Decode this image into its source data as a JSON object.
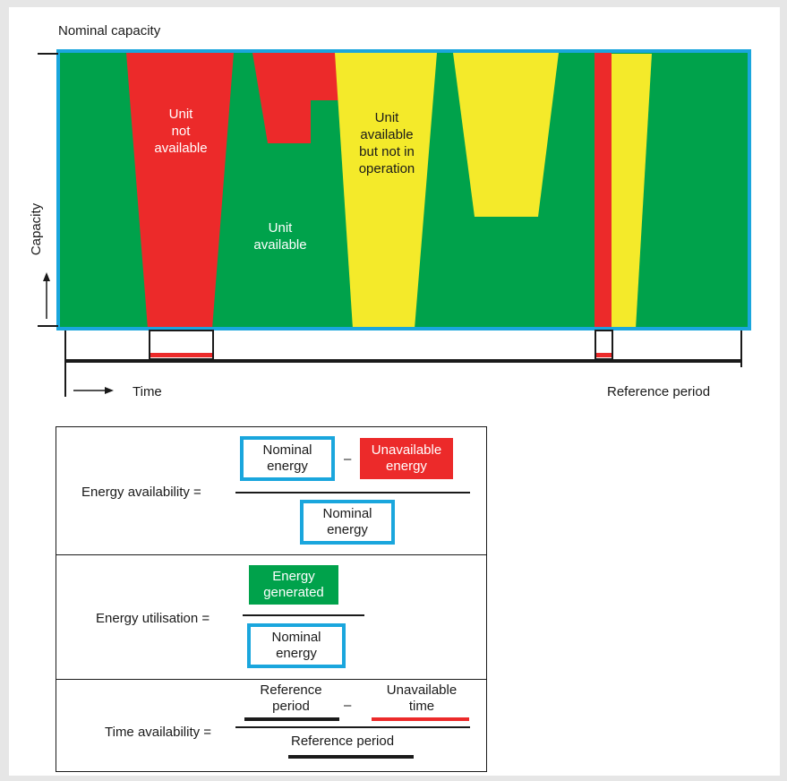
{
  "chart": {
    "nominal_capacity_label": "Nominal capacity",
    "y_axis_label": "Capacity",
    "x_axis_label": "Time",
    "reference_period_label": "Reference period",
    "regions": {
      "unit_not_available": "Unit not available",
      "unit_available": "Unit available",
      "unit_available_not_operating": "Unit available but not in operation"
    },
    "colors": {
      "available": "#00a24b",
      "not_available": "#ec2a2a",
      "not_operating": "#f4ea2a",
      "nominal_border": "#1aa6dd",
      "axis": "#1a1a1a"
    }
  },
  "formulas": {
    "energy_availability": {
      "label": "Energy availability =",
      "nominal_energy_1": "Nominal",
      "nominal_energy_2": "energy",
      "minus": "–",
      "unavailable_energy_1": "Unavailable",
      "unavailable_energy_2": "energy",
      "denominator_1": "Nominal",
      "denominator_2": "energy"
    },
    "energy_utilisation": {
      "label": "Energy utilisation =",
      "energy_generated_1": "Energy",
      "energy_generated_2": "generated",
      "denominator_1": "Nominal",
      "denominator_2": "energy"
    },
    "time_availability": {
      "label": "Time availability =",
      "reference_period_1": "Reference",
      "reference_period_2": "period",
      "minus": "–",
      "unavailable_time_1": "Unavailable",
      "unavailable_time_2": "time",
      "denominator": "Reference period"
    }
  }
}
